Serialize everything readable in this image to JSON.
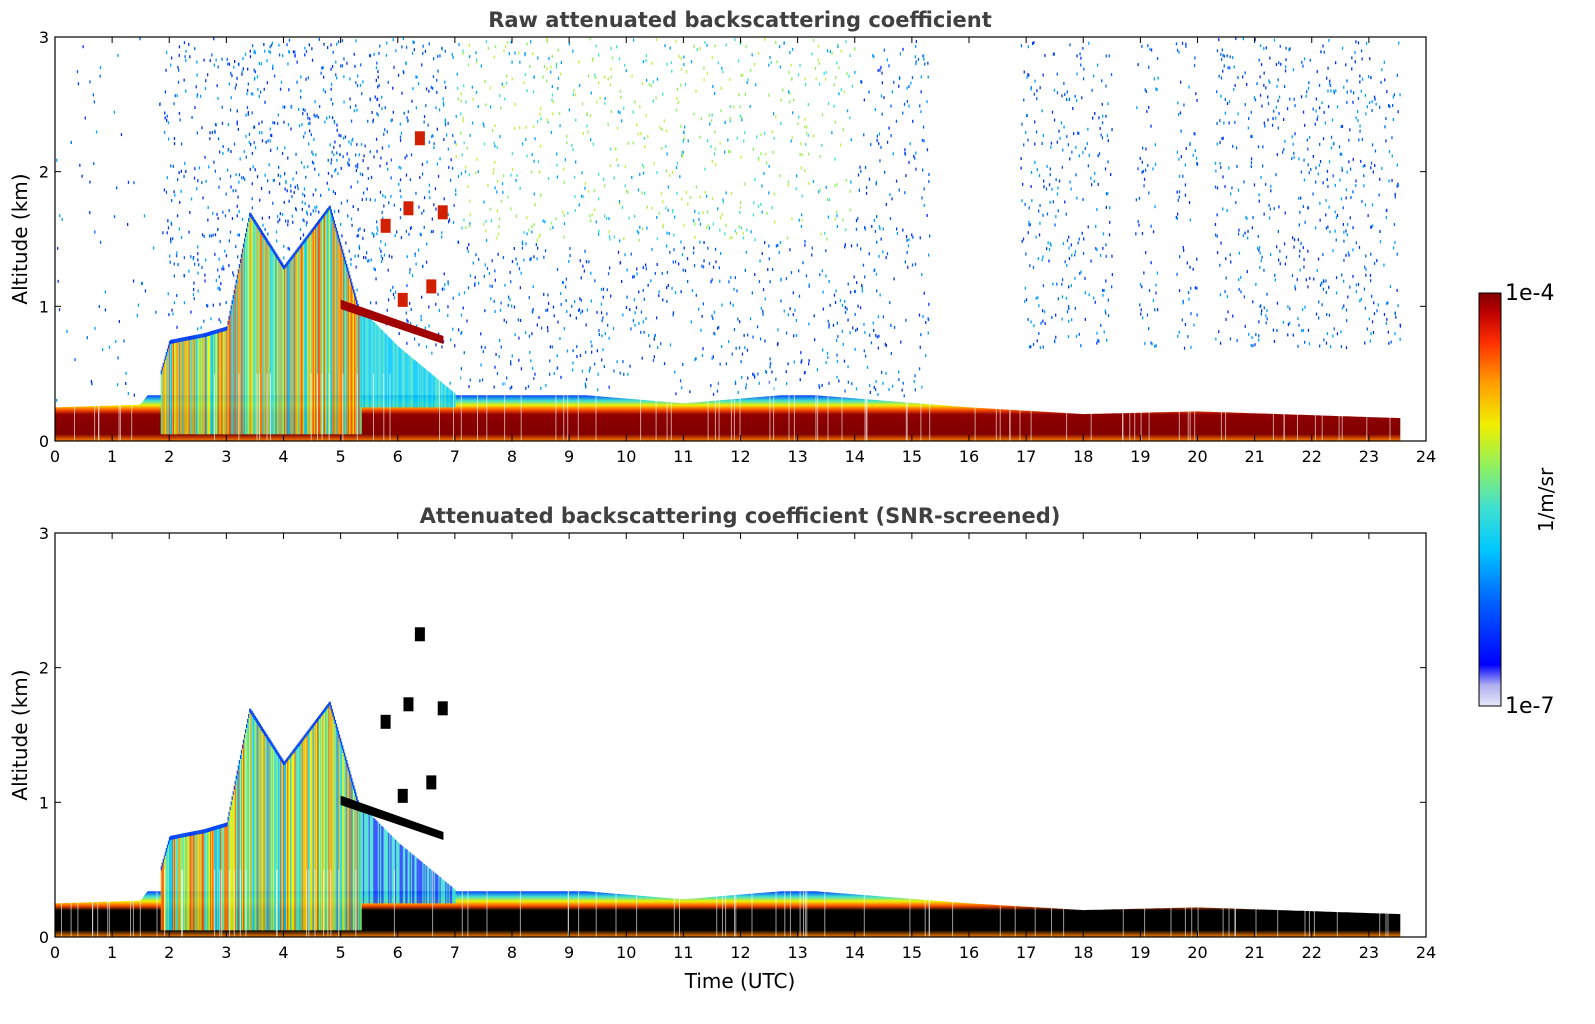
{
  "chart_data": [
    {
      "type": "heatmap",
      "title": "Raw attenuated backscattering coefficient",
      "xlabel": "",
      "ylabel": "Altitude (km)",
      "xlim": [
        0,
        24
      ],
      "ylim": [
        0,
        3
      ],
      "xticks": [
        "0",
        "1",
        "2",
        "3",
        "4",
        "5",
        "6",
        "7",
        "8",
        "9",
        "10",
        "11",
        "12",
        "13",
        "14",
        "15",
        "16",
        "17",
        "18",
        "19",
        "20",
        "21",
        "22",
        "23",
        "24"
      ],
      "yticks": [
        "0",
        "1",
        "2",
        "3"
      ],
      "data_end_time": 23.55,
      "layer_top_km": [
        {
          "t": 0,
          "z": 0.25
        },
        {
          "t": 1.5,
          "z": 0.27
        },
        {
          "t": 1.8,
          "z": 0.45
        },
        {
          "t": 2.0,
          "z": 0.75
        },
        {
          "t": 2.6,
          "z": 0.8
        },
        {
          "t": 3.0,
          "z": 0.85
        },
        {
          "t": 3.4,
          "z": 1.7
        },
        {
          "t": 4.0,
          "z": 1.3
        },
        {
          "t": 4.8,
          "z": 1.75
        },
        {
          "t": 5.3,
          "z": 1.0
        },
        {
          "t": 6.0,
          "z": 0.7
        },
        {
          "t": 7.0,
          "z": 0.35
        },
        {
          "t": 9.0,
          "z": 0.35
        },
        {
          "t": 11.0,
          "z": 0.28
        },
        {
          "t": 13.0,
          "z": 0.35
        },
        {
          "t": 16.0,
          "z": 0.25
        },
        {
          "t": 18.0,
          "z": 0.2
        },
        {
          "t": 20.0,
          "z": 0.22
        },
        {
          "t": 23.55,
          "z": 0.17
        }
      ],
      "noise_above_km": 3.0
    },
    {
      "type": "heatmap",
      "title": "Attenuated backscattering coefficient (SNR-screened)",
      "xlabel": "Time (UTC)",
      "ylabel": "Altitude (km)",
      "xlim": [
        0,
        24
      ],
      "ylim": [
        0,
        3
      ],
      "xticks": [
        "0",
        "1",
        "2",
        "3",
        "4",
        "5",
        "6",
        "7",
        "8",
        "9",
        "10",
        "11",
        "12",
        "13",
        "14",
        "15",
        "16",
        "17",
        "18",
        "19",
        "20",
        "21",
        "22",
        "23",
        "24"
      ],
      "yticks": [
        "0",
        "1",
        "2",
        "3"
      ],
      "data_end_time": 23.55,
      "saturated_color": "#000000"
    }
  ],
  "colorbar": {
    "label": "1/m/sr",
    "max_label": "1e-4",
    "min_label": "1e-7",
    "colormap": [
      "#e8e8f8",
      "#b0b0f0",
      "#0000ff",
      "#0060ff",
      "#00c8ff",
      "#40e0d0",
      "#90f060",
      "#f0f000",
      "#ffa000",
      "#ff3000",
      "#c00000",
      "#800000"
    ]
  }
}
